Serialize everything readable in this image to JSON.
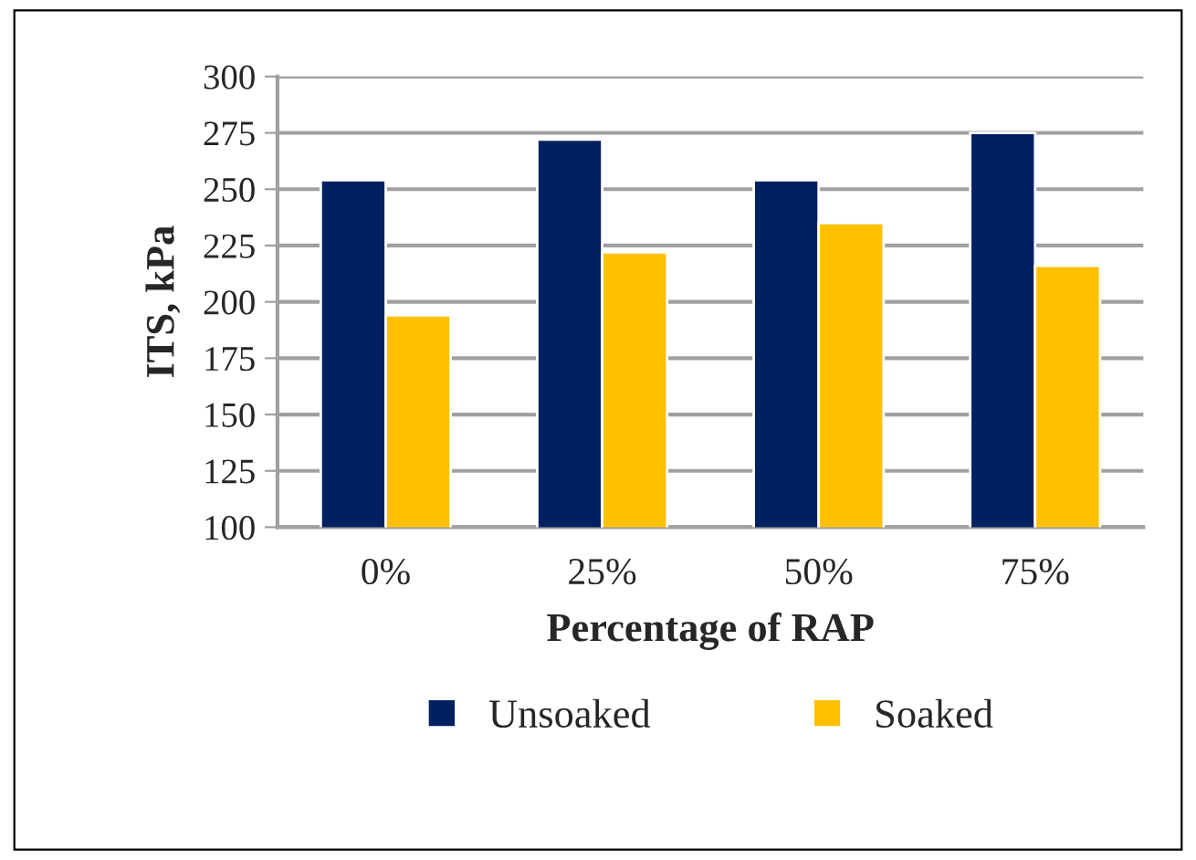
{
  "chart_data": {
    "type": "bar",
    "categories": [
      "0%",
      "25%",
      "50%",
      "75%"
    ],
    "series": [
      {
        "name": "Unsoaked",
        "color": "#002060",
        "values": [
          254,
          272,
          254,
          275
        ]
      },
      {
        "name": "Soaked",
        "color": "#ffc000",
        "values": [
          194,
          222,
          235,
          216
        ]
      }
    ],
    "xlabel": "Percentage of RAP",
    "ylabel": "ITS, kPa",
    "ylim": [
      100,
      300
    ],
    "yticks": [
      100,
      125,
      150,
      175,
      200,
      225,
      250,
      275,
      300
    ],
    "grid": "y",
    "legend": "bottom"
  }
}
